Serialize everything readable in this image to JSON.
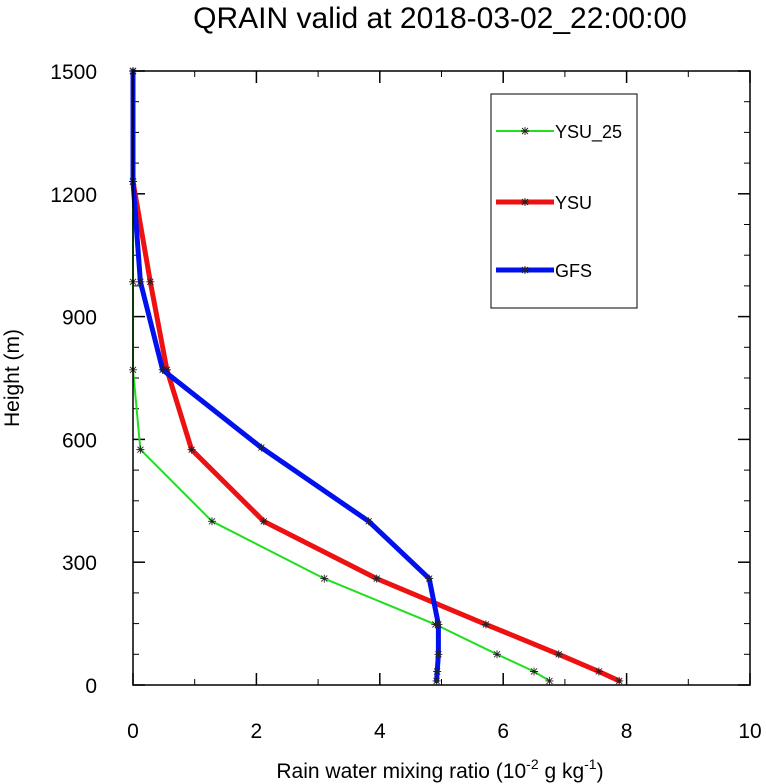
{
  "chart_data": {
    "type": "line",
    "title": "QRAIN valid at 2018-03-02_22:00:00",
    "xlabel_main": "Rain water mixing ratio (10",
    "xlabel_exp1": "-2",
    "xlabel_mid": " g kg",
    "xlabel_exp2": "-1",
    "xlabel_end": ")",
    "ylabel": "Height (m)",
    "xlim": [
      0,
      10
    ],
    "ylim": [
      0,
      1500
    ],
    "xticks": [
      0,
      2,
      4,
      6,
      8,
      10
    ],
    "yticks": [
      0,
      300,
      600,
      900,
      1200,
      1500
    ],
    "xtick_labels": [
      "0",
      "2",
      "4",
      "6",
      "8",
      "10"
    ],
    "ytick_labels": [
      "0",
      "300",
      "600",
      "900",
      "1200",
      "1500"
    ],
    "grid": false,
    "legend_position": "top-right",
    "series": [
      {
        "name": "YSU_25",
        "color": "#22dd22",
        "points": [
          [
            6.75,
            10
          ],
          [
            6.5,
            33
          ],
          [
            5.9,
            75
          ],
          [
            4.9,
            148
          ],
          [
            3.1,
            260
          ],
          [
            1.28,
            400
          ],
          [
            0.12,
            575
          ],
          [
            0.0,
            770
          ],
          [
            0.0,
            985
          ],
          [
            0.0,
            1230
          ],
          [
            0.0,
            1500
          ]
        ]
      },
      {
        "name": "YSU",
        "color": "#ee1111",
        "points": [
          [
            7.88,
            10
          ],
          [
            7.55,
            33
          ],
          [
            6.9,
            75
          ],
          [
            5.72,
            148
          ],
          [
            3.95,
            260
          ],
          [
            2.12,
            400
          ],
          [
            0.95,
            575
          ],
          [
            0.55,
            770
          ],
          [
            0.28,
            985
          ],
          [
            0.0,
            1230
          ],
          [
            0.0,
            1500
          ]
        ]
      },
      {
        "name": "GFS",
        "color": "#0011ee",
        "points": [
          [
            4.92,
            10
          ],
          [
            4.93,
            33
          ],
          [
            4.95,
            75
          ],
          [
            4.95,
            148
          ],
          [
            4.8,
            260
          ],
          [
            3.82,
            400
          ],
          [
            2.08,
            580
          ],
          [
            0.48,
            770
          ],
          [
            0.12,
            985
          ],
          [
            0.0,
            1230
          ],
          [
            0.0,
            1500
          ]
        ]
      }
    ]
  }
}
